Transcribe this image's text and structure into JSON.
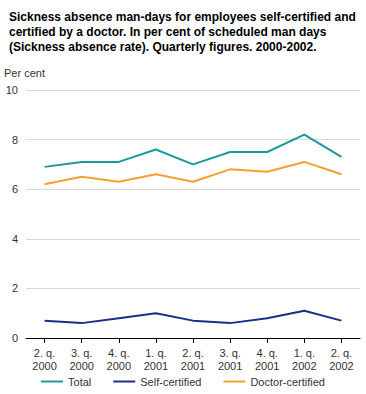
{
  "chart_data": {
    "type": "line",
    "title": "Sickness absence man-days for employees self-certified and certified by a doctor. In per cent of scheduled man days (Sickness absence rate). Quarterly figures. 2000-2002.",
    "y_label": "Per cent",
    "categories": [
      "2. q. 2000",
      "3. q. 2000",
      "4. q. 2000",
      "1. q. 2001",
      "2. q. 2001",
      "3. q. 2001",
      "4. q. 2001",
      "1. q. 2002",
      "2. q. 2002"
    ],
    "series": [
      {
        "name": "Total",
        "color": "#1a9a9c",
        "values": [
          6.9,
          7.1,
          7.1,
          7.6,
          7.0,
          7.5,
          7.5,
          8.2,
          7.3
        ]
      },
      {
        "name": "Self-certified",
        "color": "#1c2e8c",
        "values": [
          0.7,
          0.6,
          0.8,
          1.0,
          0.7,
          0.6,
          0.8,
          1.1,
          0.7
        ]
      },
      {
        "name": "Doctor-certified",
        "color": "#f4a031",
        "values": [
          6.2,
          6.5,
          6.3,
          6.6,
          6.3,
          6.8,
          6.7,
          7.1,
          6.6
        ]
      }
    ],
    "ylim": [
      0,
      10
    ],
    "yticks": [
      0,
      2,
      4,
      6,
      8,
      10
    ],
    "grid": true,
    "legend": "bottom"
  }
}
